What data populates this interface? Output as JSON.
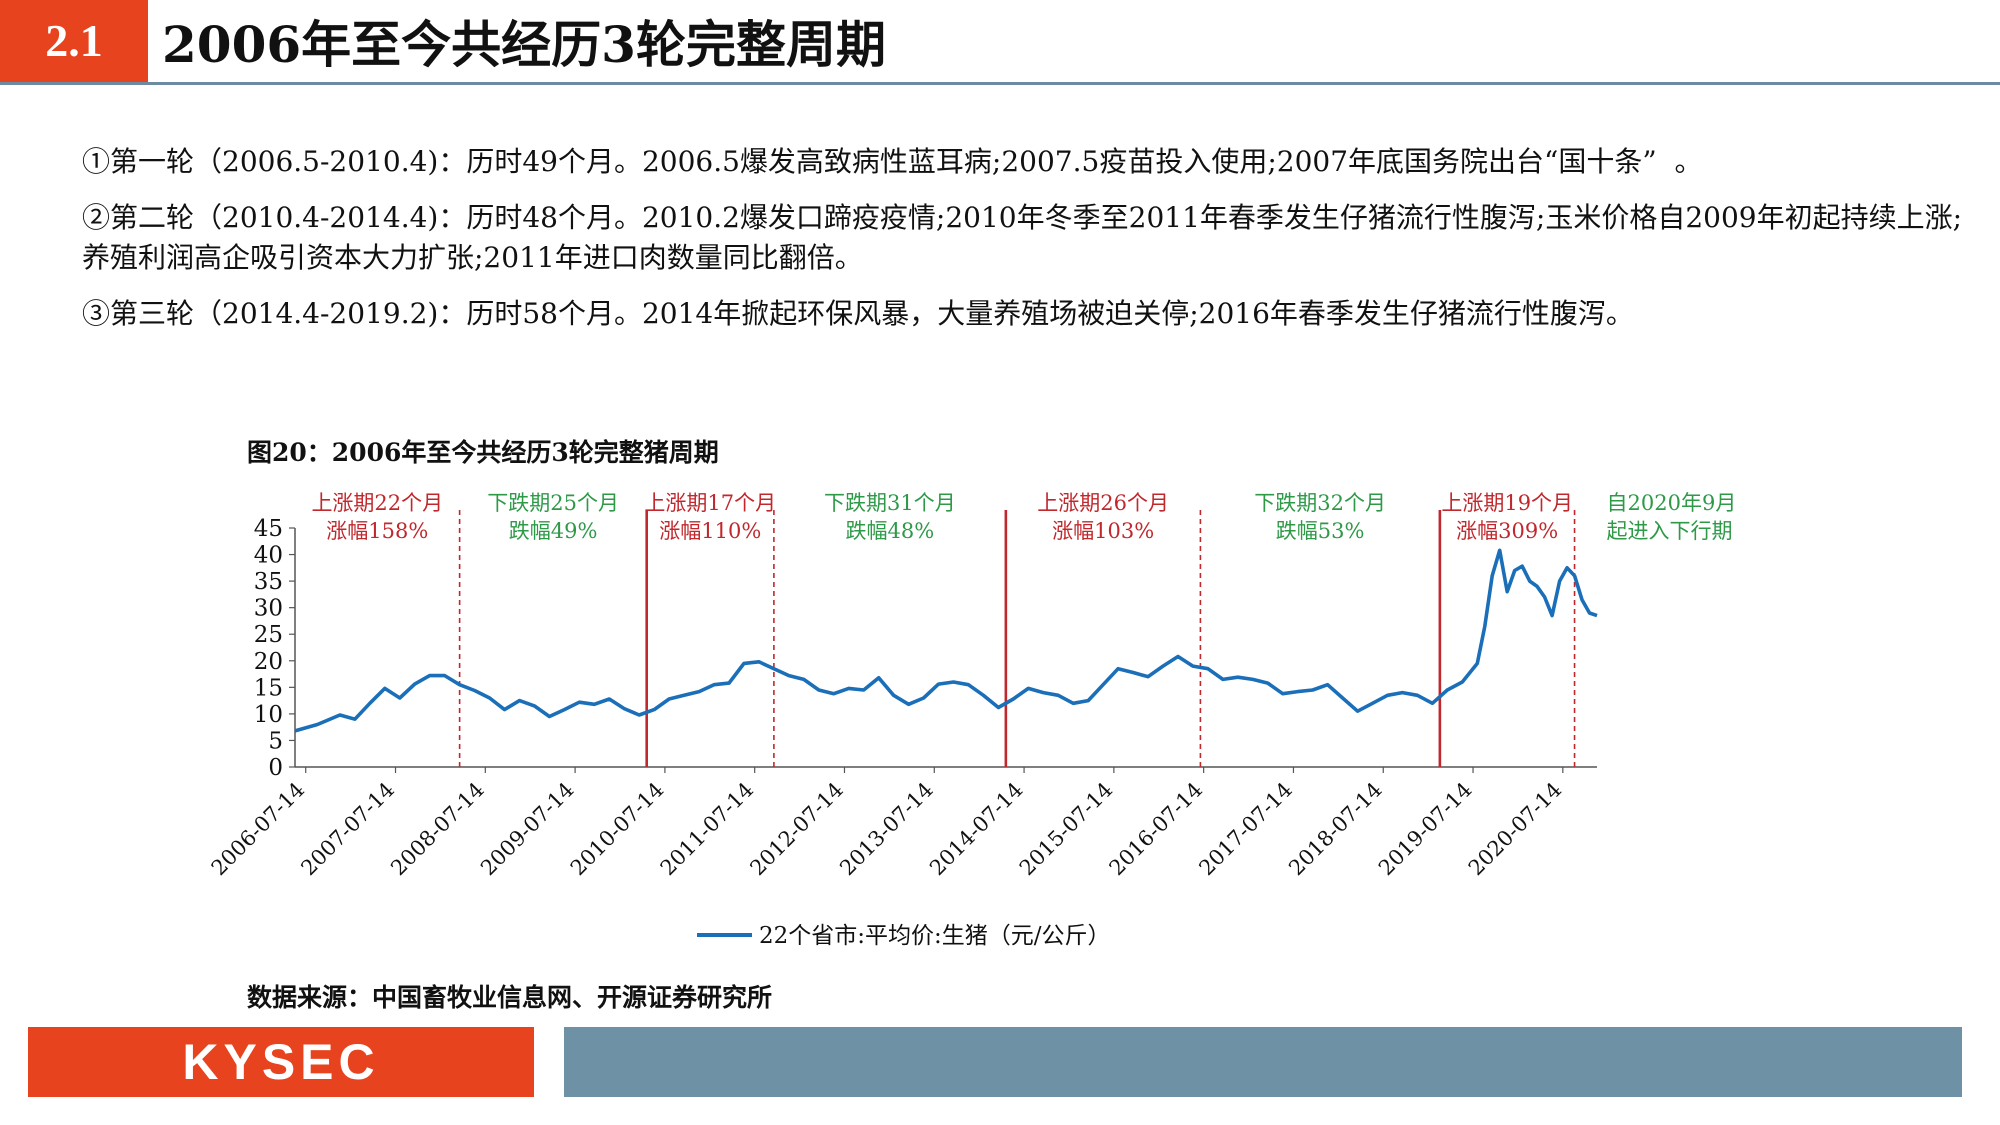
{
  "header": {
    "section_number": "2.1",
    "title": "2006年至今共经历3轮完整周期"
  },
  "bullets": [
    "①第一轮（2006.5-2010.4)：历时49个月。2006.5爆发高致病性蓝耳病;2007.5疫苗投入使用;2007年底国务院出台“国十条”  。",
    "②第二轮（2010.4-2014.4)：历时48个月。2010.2爆发口蹄疫疫情;2010年冬季至2011年春季发生仔猪流行性腹泻;玉米价格自2009年初起持续上涨;养殖利润高企吸引资本大力扩张;2011年进口肉数量同比翻倍。",
    "③第三轮（2014.4-2019.2)：历时58个月。2014年掀起环保风暴，大量养殖场被迫关停;2016年春季发生仔猪流行性腹泻。"
  ],
  "chart_title": "图20：2006年至今共经历3轮完整猪周期",
  "source": "数据来源：中国畜牧业信息网、开源证券研究所",
  "footer": {
    "logo_text": "KYSEC"
  },
  "colors": {
    "accent": "#e8431f",
    "steel": "#6f91a6",
    "line": "#1a6fb8",
    "up": "#c0282d",
    "down": "#2e9a48"
  },
  "chart_data": {
    "type": "line",
    "title": "",
    "xlabel": "",
    "ylabel": "",
    "ylim": [
      0,
      45
    ],
    "yticks": [
      0,
      5,
      10,
      15,
      20,
      25,
      30,
      35,
      40,
      45
    ],
    "xlim": [
      "2006-06",
      "2020-12"
    ],
    "xticks": [
      "2006-07-14",
      "2007-07-14",
      "2008-07-14",
      "2009-07-14",
      "2010-07-14",
      "2011-07-14",
      "2012-07-14",
      "2013-07-14",
      "2014-07-14",
      "2015-07-14",
      "2016-07-14",
      "2017-07-14",
      "2018-07-14",
      "2019-07-14",
      "2020-07-14"
    ],
    "legend": {
      "position": "bottom",
      "entries": [
        "22个省市:平均价:生猪（元/公斤）"
      ]
    },
    "series": [
      {
        "name": "22个省市:平均价:生猪（元/公斤）",
        "x": [
          "2006-06",
          "2006-09",
          "2006-12",
          "2007-02",
          "2007-04",
          "2007-06",
          "2007-08",
          "2007-10",
          "2007-12",
          "2008-02",
          "2008-04",
          "2008-06",
          "2008-08",
          "2008-10",
          "2008-12",
          "2009-02",
          "2009-04",
          "2009-06",
          "2009-08",
          "2009-10",
          "2009-12",
          "2010-02",
          "2010-04",
          "2010-06",
          "2010-08",
          "2010-10",
          "2010-12",
          "2011-02",
          "2011-04",
          "2011-06",
          "2011-08",
          "2011-10",
          "2011-12",
          "2012-02",
          "2012-04",
          "2012-06",
          "2012-08",
          "2012-10",
          "2012-12",
          "2013-02",
          "2013-04",
          "2013-06",
          "2013-08",
          "2013-10",
          "2013-12",
          "2014-02",
          "2014-04",
          "2014-06",
          "2014-08",
          "2014-10",
          "2014-12",
          "2015-02",
          "2015-04",
          "2015-06",
          "2015-08",
          "2015-10",
          "2015-12",
          "2016-02",
          "2016-04",
          "2016-06",
          "2016-08",
          "2016-10",
          "2016-12",
          "2017-02",
          "2017-04",
          "2017-06",
          "2017-08",
          "2017-10",
          "2017-12",
          "2018-02",
          "2018-04",
          "2018-06",
          "2018-08",
          "2018-10",
          "2018-12",
          "2019-02",
          "2019-04",
          "2019-06",
          "2019-08",
          "2019-09",
          "2019-10",
          "2019-11",
          "2019-12",
          "2020-01",
          "2020-02",
          "2020-03",
          "2020-04",
          "2020-05",
          "2020-06",
          "2020-07",
          "2020-08",
          "2020-09",
          "2020-10",
          "2020-11",
          "2020-12"
        ],
        "values": [
          6.8,
          8.0,
          9.8,
          9.0,
          12.0,
          14.8,
          13.0,
          15.6,
          17.2,
          17.2,
          15.5,
          14.4,
          13.0,
          10.8,
          12.5,
          11.5,
          9.5,
          10.8,
          12.2,
          11.8,
          12.8,
          11.0,
          9.8,
          10.8,
          12.8,
          13.5,
          14.2,
          15.5,
          15.8,
          19.5,
          19.8,
          18.5,
          17.2,
          16.5,
          14.5,
          13.8,
          14.8,
          14.5,
          16.8,
          13.5,
          11.8,
          13.0,
          15.6,
          16.0,
          15.5,
          13.5,
          11.2,
          12.8,
          14.8,
          14.0,
          13.5,
          12.0,
          12.5,
          15.5,
          18.5,
          17.8,
          17.0,
          19.0,
          20.8,
          19.0,
          18.5,
          16.5,
          16.9,
          16.5,
          15.8,
          13.8,
          14.2,
          14.5,
          15.5,
          13.0,
          10.5,
          12.0,
          13.5,
          14.0,
          13.5,
          12.0,
          14.5,
          16.0,
          19.5,
          26.5,
          36.0,
          40.8,
          33.0,
          37.0,
          37.8,
          35.0,
          34.0,
          32.0,
          28.5,
          35.0,
          37.5,
          36.0,
          31.5,
          29.0,
          28.5
        ]
      }
    ],
    "cycles": [
      {
        "type": "up",
        "label": "上涨期22个月",
        "change": "涨幅158%",
        "start": "2006-06",
        "end": "2008-04"
      },
      {
        "type": "down",
        "label": "下跌期25个月",
        "change": "跌幅49%",
        "start": "2008-04",
        "end": "2010-05"
      },
      {
        "type": "up",
        "label": "上涨期17个月",
        "change": "涨幅110%",
        "start": "2010-05",
        "end": "2011-10"
      },
      {
        "type": "down",
        "label": "下跌期31个月",
        "change": "跌幅48%",
        "start": "2011-10",
        "end": "2014-05"
      },
      {
        "type": "up",
        "label": "上涨期26个月",
        "change": "涨幅103%",
        "start": "2014-05",
        "end": "2016-07"
      },
      {
        "type": "down",
        "label": "下跌期32个月",
        "change": "跌幅53%",
        "start": "2016-07",
        "end": "2019-03"
      },
      {
        "type": "up",
        "label": "上涨期19个月",
        "change": "涨幅309%",
        "start": "2019-03",
        "end": "2020-09"
      },
      {
        "type": "down",
        "label": "自2020年9月",
        "change": "起进入下行期",
        "start": "2020-09",
        "end": "2020-12"
      }
    ],
    "cycle_starts": [
      "2010-05",
      "2014-05",
      "2019-03"
    ],
    "phase_boundaries": [
      "2008-04",
      "2011-10",
      "2016-07",
      "2020-09"
    ]
  }
}
